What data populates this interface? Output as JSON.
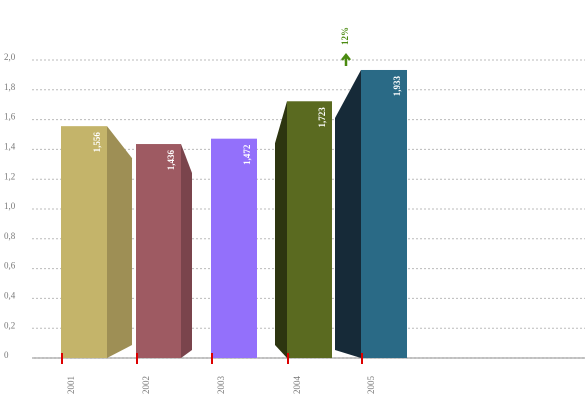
{
  "chart_data": {
    "type": "bar",
    "categories": [
      "2001",
      "2002",
      "2003",
      "2004",
      "2005"
    ],
    "values": [
      1.556,
      1.436,
      1.472,
      1.723,
      1.933
    ],
    "value_labels": [
      "1,556",
      "1,436",
      "1,472",
      "1,723",
      "1,933"
    ],
    "colors": [
      "#c4b46a",
      "#9e5a62",
      "#9370fb",
      "#5a6a20",
      "#2a6a86"
    ],
    "side_colors": [
      "#9e8f55",
      "#7a444c",
      null,
      "#2d3510",
      "#162a38"
    ],
    "ylim": [
      0,
      2.0
    ],
    "yticks": [
      0,
      {
        "value": 0.2,
        "label": "0,2"
      },
      {
        "value": 0.4,
        "label": "0,4"
      },
      {
        "value": 0.6,
        "label": "0,6"
      },
      {
        "value": 0.8,
        "label": "0,8"
      },
      {
        "value": 1.0,
        "label": "1,0"
      },
      {
        "value": 1.2,
        "label": "1,2"
      },
      {
        "value": 1.4,
        "label": "1,4"
      },
      {
        "value": 1.6,
        "label": "1,6"
      },
      {
        "value": 1.8,
        "label": "1,8"
      },
      {
        "value": 2.0,
        "label": "2,0"
      }
    ],
    "grid": true,
    "annotation": "12%",
    "annotation_color": "#4a8a10"
  }
}
